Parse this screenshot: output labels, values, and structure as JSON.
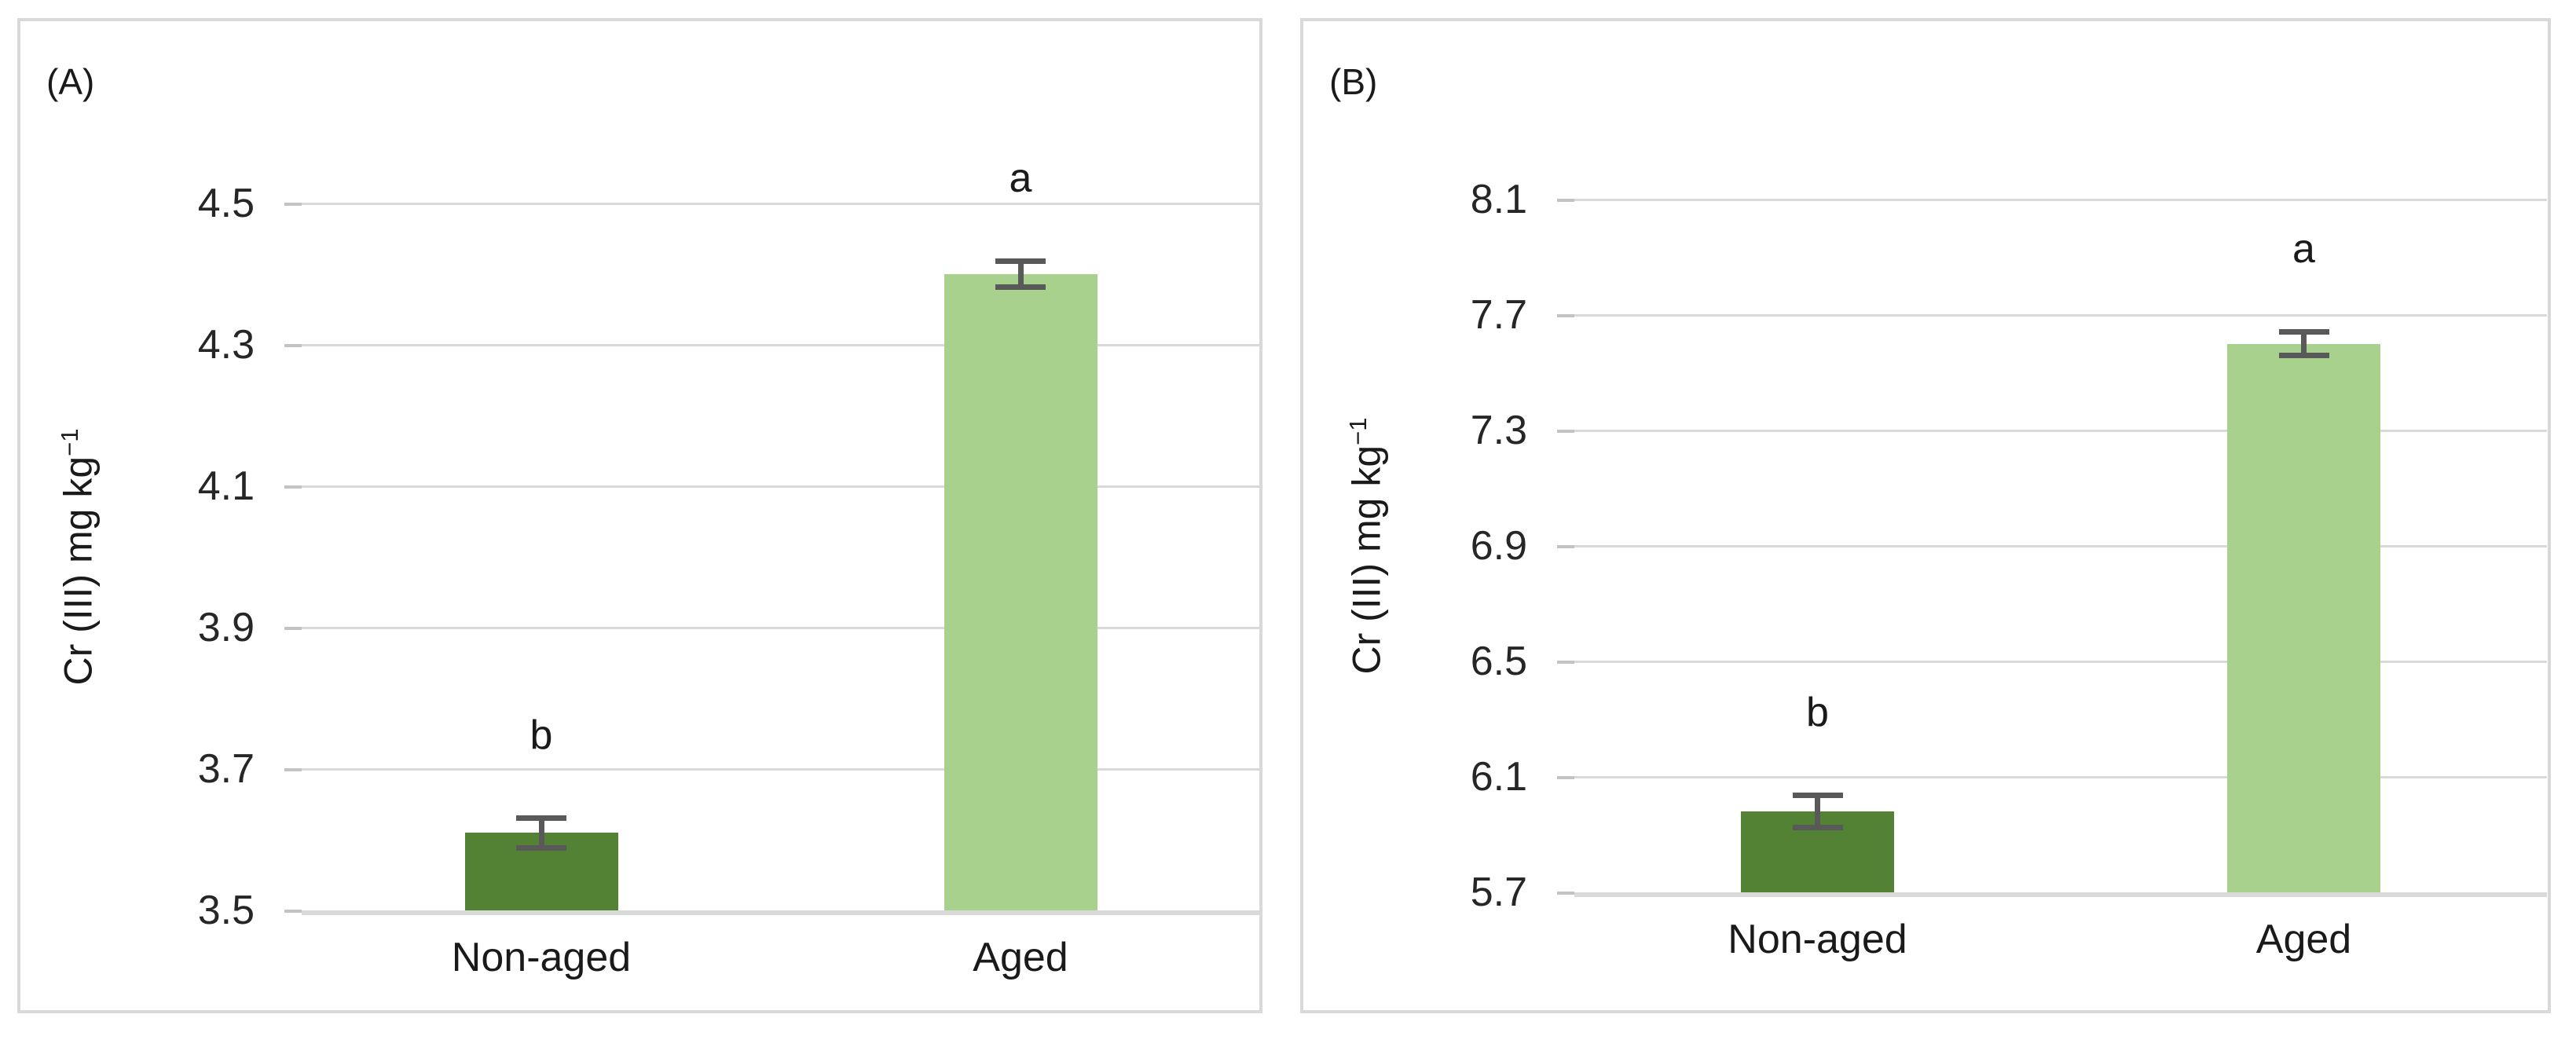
{
  "figure": {
    "background": "#FFFFFF",
    "panel_border_color": "#D9D9D9",
    "gridline_color": "#D9D9D9",
    "error_bar_color": "#595959"
  },
  "chart_data": [
    {
      "type": "bar",
      "panel_label": "(A)",
      "title": "",
      "xlabel": "",
      "ylabel": "Cr (III) mg kg⁻¹",
      "ylabel_main": "Cr (III) mg kg",
      "ylabel_sup": "−1",
      "categories": [
        "Non-aged",
        "Aged"
      ],
      "values": [
        3.61,
        4.4
      ],
      "errors": [
        0.025,
        0.022
      ],
      "significance_letters": [
        "b",
        "a"
      ],
      "ylim": [
        3.5,
        4.5
      ],
      "ytick_step": 0.2,
      "ytick_labels": [
        "4.5",
        "4.3",
        "4.1",
        "3.9",
        "3.7",
        "3.5"
      ],
      "bar_colors": [
        "#548235",
        "#A9D18E"
      ],
      "grid": true,
      "legend": false
    },
    {
      "type": "bar",
      "panel_label": "(B)",
      "title": "",
      "xlabel": "",
      "ylabel": "Cr (III) mg kg⁻¹",
      "ylabel_main": "Cr (III) mg kg",
      "ylabel_sup": "−1",
      "categories": [
        "Non-aged",
        "Aged"
      ],
      "values": [
        5.98,
        7.6
      ],
      "errors": [
        0.065,
        0.05
      ],
      "significance_letters": [
        "b",
        "a"
      ],
      "ylim": [
        5.7,
        8.1
      ],
      "ytick_step": 0.4,
      "ytick_labels": [
        "8.1",
        "7.7",
        "7.3",
        "6.9",
        "6.5",
        "6.1",
        "5.7"
      ],
      "bar_colors": [
        "#548235",
        "#A9D18E"
      ],
      "grid": true,
      "legend": false
    }
  ]
}
